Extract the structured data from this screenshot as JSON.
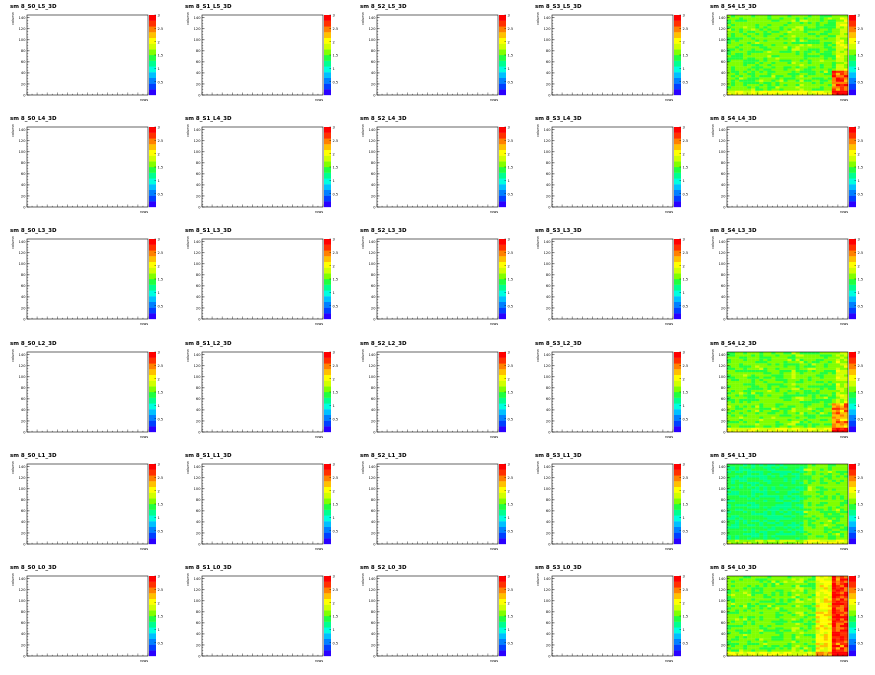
{
  "chart_data": [
    {
      "type": "heatmap",
      "title": "sm 8_S0_L5_3D",
      "xlabel": "rows",
      "ylabel": "column",
      "ylim": [
        0,
        145
      ],
      "zlim": [
        0,
        3
      ],
      "filled": false
    },
    {
      "type": "heatmap",
      "title": "sm 8_S1_L5_3D",
      "xlabel": "rows",
      "ylabel": "column",
      "ylim": [
        0,
        145
      ],
      "zlim": [
        0,
        3
      ],
      "filled": false
    },
    {
      "type": "heatmap",
      "title": "sm 8_S2_L5_3D",
      "xlabel": "rows",
      "ylabel": "column",
      "ylim": [
        0,
        145
      ],
      "zlim": [
        0,
        3
      ],
      "filled": false
    },
    {
      "type": "heatmap",
      "title": "sm 8_S3_L5_3D",
      "xlabel": "rows",
      "ylabel": "column",
      "ylim": [
        0,
        145
      ],
      "zlim": [
        0,
        3
      ],
      "filled": false
    },
    {
      "type": "heatmap",
      "title": "sm 8_S4_L5_3D",
      "xlabel": "rows",
      "ylabel": "column",
      "ylim": [
        0,
        145
      ],
      "zlim": [
        0,
        3
      ],
      "filled": true,
      "pattern": "S4_L5"
    },
    {
      "type": "heatmap",
      "title": "sm 8_S0_L4_3D",
      "xlabel": "rows",
      "ylabel": "column",
      "ylim": [
        0,
        145
      ],
      "zlim": [
        0,
        3
      ],
      "filled": false
    },
    {
      "type": "heatmap",
      "title": "sm 8_S1_L4_3D",
      "xlabel": "rows",
      "ylabel": "column",
      "ylim": [
        0,
        145
      ],
      "zlim": [
        0,
        3
      ],
      "filled": false
    },
    {
      "type": "heatmap",
      "title": "sm 8_S2_L4_3D",
      "xlabel": "rows",
      "ylabel": "column",
      "ylim": [
        0,
        145
      ],
      "zlim": [
        0,
        3
      ],
      "filled": false
    },
    {
      "type": "heatmap",
      "title": "sm 8_S3_L4_3D",
      "xlabel": "rows",
      "ylabel": "column",
      "ylim": [
        0,
        145
      ],
      "zlim": [
        0,
        3
      ],
      "filled": false
    },
    {
      "type": "heatmap",
      "title": "sm 8_S4_L4_3D",
      "xlabel": "rows",
      "ylabel": "column",
      "ylim": [
        0,
        145
      ],
      "zlim": [
        0,
        3
      ],
      "filled": false
    },
    {
      "type": "heatmap",
      "title": "sm 8_S0_L3_3D",
      "xlabel": "rows",
      "ylabel": "column",
      "ylim": [
        0,
        145
      ],
      "zlim": [
        0,
        3
      ],
      "filled": false
    },
    {
      "type": "heatmap",
      "title": "sm 8_S1_L3_3D",
      "xlabel": "rows",
      "ylabel": "column",
      "ylim": [
        0,
        145
      ],
      "zlim": [
        0,
        3
      ],
      "filled": false
    },
    {
      "type": "heatmap",
      "title": "sm 8_S2_L3_3D",
      "xlabel": "rows",
      "ylabel": "column",
      "ylim": [
        0,
        145
      ],
      "zlim": [
        0,
        3
      ],
      "filled": false
    },
    {
      "type": "heatmap",
      "title": "sm 8_S3_L3_3D",
      "xlabel": "rows",
      "ylabel": "column",
      "ylim": [
        0,
        145
      ],
      "zlim": [
        0,
        3
      ],
      "filled": false
    },
    {
      "type": "heatmap",
      "title": "sm 8_S4_L3_3D",
      "xlabel": "rows",
      "ylabel": "column",
      "ylim": [
        0,
        145
      ],
      "zlim": [
        0,
        3
      ],
      "filled": false
    },
    {
      "type": "heatmap",
      "title": "sm 8_S0_L2_3D",
      "xlabel": "rows",
      "ylabel": "column",
      "ylim": [
        0,
        145
      ],
      "zlim": [
        0,
        3
      ],
      "filled": false
    },
    {
      "type": "heatmap",
      "title": "sm 8_S1_L2_3D",
      "xlabel": "rows",
      "ylabel": "column",
      "ylim": [
        0,
        145
      ],
      "zlim": [
        0,
        3
      ],
      "filled": false
    },
    {
      "type": "heatmap",
      "title": "sm 8_S2_L2_3D",
      "xlabel": "rows",
      "ylabel": "column",
      "ylim": [
        0,
        145
      ],
      "zlim": [
        0,
        3
      ],
      "filled": false
    },
    {
      "type": "heatmap",
      "title": "sm 8_S3_L2_3D",
      "xlabel": "rows",
      "ylabel": "column",
      "ylim": [
        0,
        145
      ],
      "zlim": [
        0,
        3
      ],
      "filled": false
    },
    {
      "type": "heatmap",
      "title": "sm 8_S4_L2_3D",
      "xlabel": "rows",
      "ylabel": "column",
      "ylim": [
        0,
        145
      ],
      "zlim": [
        0,
        3
      ],
      "filled": true,
      "pattern": "S4_L2"
    },
    {
      "type": "heatmap",
      "title": "sm 8_S0_L1_3D",
      "xlabel": "rows",
      "ylabel": "column",
      "ylim": [
        0,
        145
      ],
      "zlim": [
        0,
        3
      ],
      "filled": false
    },
    {
      "type": "heatmap",
      "title": "sm 8_S1_L1_3D",
      "xlabel": "rows",
      "ylabel": "column",
      "ylim": [
        0,
        145
      ],
      "zlim": [
        0,
        3
      ],
      "filled": false
    },
    {
      "type": "heatmap",
      "title": "sm 8_S2_L1_3D",
      "xlabel": "rows",
      "ylabel": "column",
      "ylim": [
        0,
        145
      ],
      "zlim": [
        0,
        3
      ],
      "filled": false
    },
    {
      "type": "heatmap",
      "title": "sm 8_S3_L1_3D",
      "xlabel": "rows",
      "ylabel": "column",
      "ylim": [
        0,
        145
      ],
      "zlim": [
        0,
        3
      ],
      "filled": false
    },
    {
      "type": "heatmap",
      "title": "sm 8_S4_L1_3D",
      "xlabel": "rows",
      "ylabel": "column",
      "ylim": [
        0,
        145
      ],
      "zlim": [
        0,
        3
      ],
      "filled": true,
      "pattern": "S4_L1"
    },
    {
      "type": "heatmap",
      "title": "sm 8_S0_L0_3D",
      "xlabel": "rows",
      "ylabel": "column",
      "ylim": [
        0,
        145
      ],
      "zlim": [
        0,
        3
      ],
      "filled": false
    },
    {
      "type": "heatmap",
      "title": "sm 8_S1_L0_3D",
      "xlabel": "rows",
      "ylabel": "column",
      "ylim": [
        0,
        145
      ],
      "zlim": [
        0,
        3
      ],
      "filled": false
    },
    {
      "type": "heatmap",
      "title": "sm 8_S2_L0_3D",
      "xlabel": "rows",
      "ylabel": "column",
      "ylim": [
        0,
        145
      ],
      "zlim": [
        0,
        3
      ],
      "filled": false
    },
    {
      "type": "heatmap",
      "title": "sm 8_S3_L0_3D",
      "xlabel": "rows",
      "ylabel": "column",
      "ylim": [
        0,
        145
      ],
      "zlim": [
        0,
        3
      ],
      "filled": false
    },
    {
      "type": "heatmap",
      "title": "sm 8_S4_L0_3D",
      "xlabel": "rows",
      "ylabel": "column",
      "ylim": [
        0,
        145
      ],
      "zlim": [
        0,
        3
      ],
      "filled": true,
      "pattern": "S4_L0"
    }
  ],
  "y_ticks": [
    "0",
    "20",
    "40",
    "60",
    "80",
    "100",
    "120",
    "140"
  ],
  "z_ticks": [
    "0.5",
    "1",
    "1.5",
    "2",
    "2.5",
    "3"
  ],
  "palette": [
    "#2a00ff",
    "#0040ff",
    "#0080ff",
    "#00c0ff",
    "#00ffe0",
    "#00ff90",
    "#20ff40",
    "#80ff00",
    "#d0ff00",
    "#ffff00",
    "#ffc000",
    "#ff8000",
    "#ff3000",
    "#ff0000"
  ]
}
